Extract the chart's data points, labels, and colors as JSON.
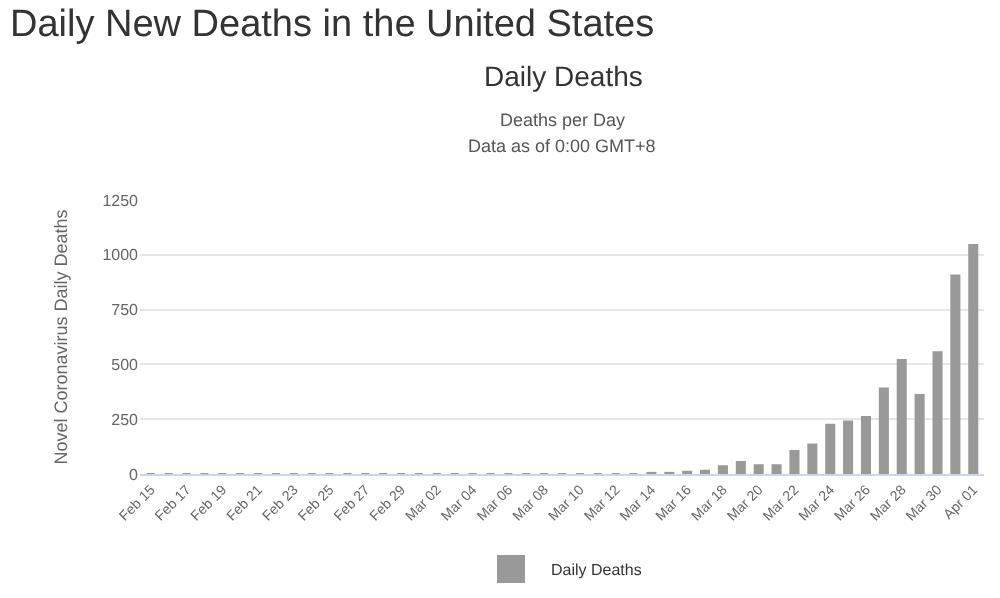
{
  "chart_data": {
    "type": "bar",
    "title": "Daily New Deaths in the United States",
    "subtitle": "Daily Deaths",
    "annotations": [
      "Deaths per Day",
      "Data as of 0:00 GMT+8"
    ],
    "ylabel": "Novel Coronavirus Daily Deaths",
    "categories": [
      "Feb 15",
      null,
      "Feb 17",
      null,
      "Feb 19",
      null,
      "Feb 21",
      null,
      "Feb 23",
      null,
      "Feb 25",
      null,
      "Feb 27",
      null,
      "Feb 29",
      null,
      "Mar 02",
      null,
      "Mar 04",
      null,
      "Mar 06",
      null,
      "Mar 08",
      null,
      "Mar 10",
      null,
      "Mar 12",
      null,
      "Mar 14",
      null,
      "Mar 16",
      null,
      "Mar 18",
      null,
      "Mar 20",
      null,
      "Mar 22",
      null,
      "Mar 24",
      null,
      "Mar 26",
      null,
      "Mar 28",
      null,
      "Mar 30",
      null,
      "Apr 01"
    ],
    "series": [
      {
        "name": "Daily Deaths",
        "color": "#999999",
        "values": [
          0,
          0,
          0,
          0,
          0,
          0,
          0,
          0,
          0,
          0,
          0,
          0,
          0,
          0,
          0,
          0,
          0,
          0,
          0,
          0,
          0,
          0,
          0,
          0,
          0,
          0,
          0,
          0,
          5,
          5,
          10,
          15,
          35,
          55,
          40,
          40,
          105,
          135,
          225,
          240,
          260,
          390,
          520,
          360,
          555,
          905,
          1045
        ]
      }
    ],
    "ylim": [
      0,
      1250
    ],
    "yticks": [
      0,
      250,
      500,
      750,
      1000,
      1250
    ],
    "grid": "y",
    "legend": "bottom"
  }
}
